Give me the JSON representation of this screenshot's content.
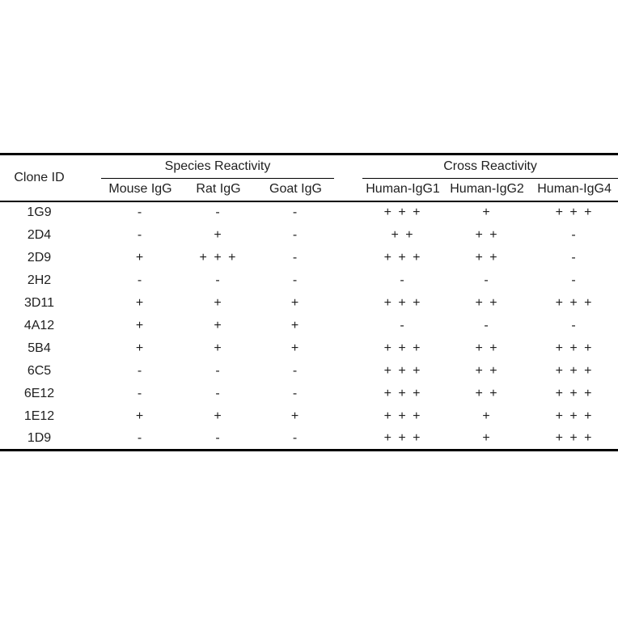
{
  "page": {
    "background": "#ffffff",
    "text_color": "#1f1f1f",
    "rule_color": "#000000"
  },
  "table": {
    "corner_header": "Clone ID",
    "groups": [
      {
        "label": "Species Reactivity",
        "columns": [
          "Mouse IgG",
          "Rat IgG",
          "Goat IgG"
        ]
      },
      {
        "label": "Cross Reactivity",
        "columns": [
          "Human-IgG1",
          "Human-IgG2",
          "Human-IgG4"
        ]
      }
    ],
    "rows": [
      {
        "clone_id": "1G9",
        "values": [
          "-",
          "-",
          "-",
          "+ + +",
          "+",
          "+ + +"
        ]
      },
      {
        "clone_id": "2D4",
        "values": [
          "-",
          "+",
          "-",
          "+ +",
          "+ +",
          "-"
        ]
      },
      {
        "clone_id": "2D9",
        "values": [
          "+",
          "+ + +",
          "-",
          "+ + +",
          "+ +",
          "-"
        ]
      },
      {
        "clone_id": "2H2",
        "values": [
          "-",
          "-",
          "-",
          "-",
          "-",
          "-"
        ]
      },
      {
        "clone_id": "3D11",
        "values": [
          "+",
          "+",
          "+",
          "+ + +",
          "+ +",
          "+ + +"
        ]
      },
      {
        "clone_id": "4A12",
        "values": [
          "+",
          "+",
          "+",
          "-",
          "-",
          "-"
        ]
      },
      {
        "clone_id": "5B4",
        "values": [
          "+",
          "+",
          "+",
          "+ + +",
          "+ +",
          "+ + +"
        ]
      },
      {
        "clone_id": "6C5",
        "values": [
          "-",
          "-",
          "-",
          "+ + +",
          "+ +",
          "+ + +"
        ]
      },
      {
        "clone_id": "6E12",
        "values": [
          "-",
          "-",
          "-",
          "+ + +",
          "+ +",
          "+ + +"
        ]
      },
      {
        "clone_id": "1E12",
        "values": [
          "+",
          "+",
          "+",
          "+ + +",
          "+",
          "+ + +"
        ]
      },
      {
        "clone_id": "1D9",
        "values": [
          "-",
          "-",
          "-",
          "+ + +",
          "+",
          "+ + +"
        ]
      }
    ]
  }
}
